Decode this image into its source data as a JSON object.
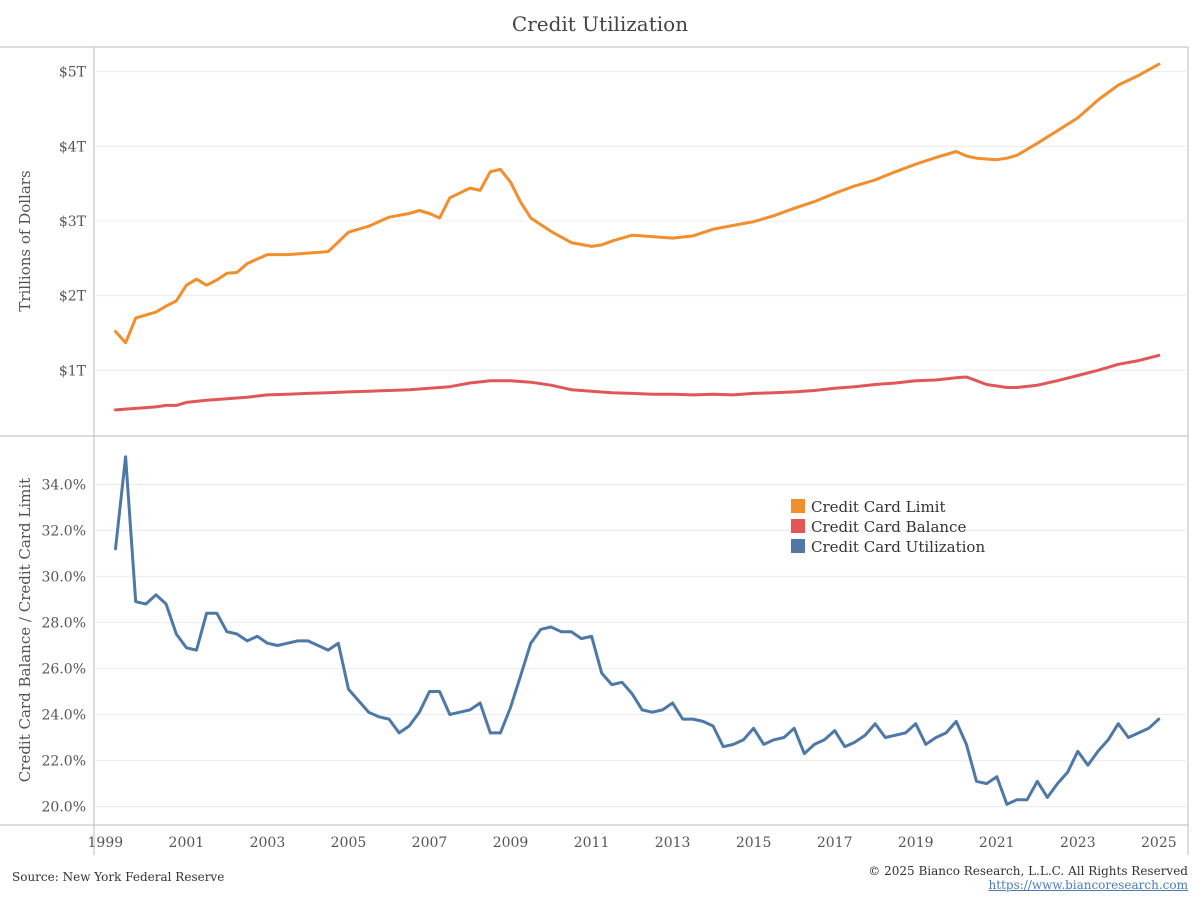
{
  "page": {
    "title": "Credit Utilization",
    "source": "Source: New York Federal Reserve",
    "copyright": "© 2025 Bianco Research, L.L.C. All Rights Reserved",
    "website": "https://www.biancoresearch.com"
  },
  "colors": {
    "limit": "#f28e2b",
    "balance": "#e15759",
    "utilization": "#4e79a7",
    "grid": "#ececec",
    "frame": "#bbbbbb"
  },
  "chart_data": [
    {
      "type": "line",
      "title": "",
      "ylabel": "Trillions of Dollars",
      "ylim": [
        0.12,
        5.33
      ],
      "yticks": [
        1,
        2,
        3,
        4,
        5
      ],
      "ytick_labels": [
        "$1T",
        "$2T",
        "$3T",
        "$4T",
        "$5T"
      ],
      "xlim": [
        1998.72,
        2025.72
      ],
      "grid": true,
      "series": [
        {
          "name": "Credit Card Limit",
          "x": [
            1999.25,
            1999.5,
            1999.75,
            2000,
            2000.25,
            2000.5,
            2000.75,
            2001,
            2001.25,
            2001.5,
            2001.75,
            2002,
            2002.25,
            2002.5,
            2003,
            2003.5,
            2004,
            2004.5,
            2005,
            2005.5,
            2006,
            2006.5,
            2006.75,
            2007,
            2007.25,
            2007.5,
            2008,
            2008.25,
            2008.5,
            2008.75,
            2009,
            2009.25,
            2009.5,
            2010,
            2010.5,
            2011,
            2011.25,
            2011.5,
            2012,
            2012.5,
            2013,
            2013.5,
            2014,
            2014.5,
            2015,
            2015.5,
            2016,
            2016.5,
            2017,
            2017.5,
            2018,
            2018.5,
            2019,
            2019.5,
            2020,
            2020.25,
            2020.5,
            2021,
            2021.25,
            2021.5,
            2022,
            2022.5,
            2023,
            2023.5,
            2024,
            2024.5,
            2025
          ],
          "values": [
            1.52,
            1.37,
            1.7,
            1.74,
            1.78,
            1.86,
            1.93,
            2.14,
            2.22,
            2.14,
            2.21,
            2.3,
            2.31,
            2.43,
            2.55,
            2.55,
            2.57,
            2.59,
            2.85,
            2.93,
            3.05,
            3.1,
            3.14,
            3.1,
            3.04,
            3.31,
            3.44,
            3.41,
            3.66,
            3.69,
            3.52,
            3.25,
            3.04,
            2.86,
            2.71,
            2.66,
            2.68,
            2.73,
            2.81,
            2.79,
            2.77,
            2.8,
            2.89,
            2.94,
            2.99,
            3.07,
            3.17,
            3.26,
            3.37,
            3.47,
            3.55,
            3.66,
            3.76,
            3.85,
            3.93,
            3.87,
            3.84,
            3.82,
            3.84,
            3.88,
            4.04,
            4.21,
            4.38,
            4.62,
            4.82,
            4.95,
            5.1
          ]
        },
        {
          "name": "Credit Card Balance",
          "x": [
            1999.25,
            1999.5,
            1999.75,
            2000,
            2000.25,
            2000.5,
            2000.75,
            2001,
            2001.5,
            2002,
            2002.5,
            2003,
            2003.5,
            2004,
            2004.5,
            2005,
            2005.5,
            2006,
            2006.5,
            2007,
            2007.5,
            2008,
            2008.5,
            2009,
            2009.5,
            2010,
            2010.5,
            2011,
            2011.5,
            2012,
            2012.5,
            2013,
            2013.5,
            2014,
            2014.5,
            2015,
            2015.5,
            2016,
            2016.5,
            2017,
            2017.5,
            2018,
            2018.5,
            2019,
            2019.5,
            2020,
            2020.25,
            2020.5,
            2020.75,
            2021,
            2021.25,
            2021.5,
            2022,
            2022.5,
            2023,
            2023.5,
            2024,
            2024.5,
            2025
          ],
          "values": [
            0.47,
            0.48,
            0.49,
            0.5,
            0.51,
            0.53,
            0.53,
            0.57,
            0.6,
            0.62,
            0.64,
            0.67,
            0.68,
            0.69,
            0.7,
            0.71,
            0.72,
            0.73,
            0.74,
            0.76,
            0.78,
            0.83,
            0.86,
            0.86,
            0.84,
            0.8,
            0.74,
            0.72,
            0.7,
            0.69,
            0.68,
            0.68,
            0.67,
            0.68,
            0.67,
            0.69,
            0.7,
            0.71,
            0.73,
            0.76,
            0.78,
            0.81,
            0.83,
            0.86,
            0.87,
            0.9,
            0.91,
            0.86,
            0.81,
            0.79,
            0.77,
            0.77,
            0.8,
            0.86,
            0.93,
            1.0,
            1.08,
            1.13,
            1.2
          ]
        }
      ]
    },
    {
      "type": "line",
      "title": "",
      "ylabel": "Credit Card Balance / Credit Card Limit",
      "ylim": [
        19.2,
        36.1
      ],
      "yticks": [
        20,
        22,
        24,
        26,
        28,
        30,
        32,
        34
      ],
      "ytick_labels": [
        "20.0%",
        "22.0%",
        "24.0%",
        "26.0%",
        "28.0%",
        "30.0%",
        "32.0%",
        "34.0%"
      ],
      "xlim": [
        1998.72,
        2025.72
      ],
      "xticks": [
        1999,
        2001,
        2003,
        2005,
        2007,
        2009,
        2011,
        2013,
        2015,
        2017,
        2019,
        2021,
        2023,
        2025
      ],
      "xtick_labels": [
        "1999",
        "2001",
        "2003",
        "2005",
        "2007",
        "2009",
        "2011",
        "2013",
        "2015",
        "2017",
        "2019",
        "2021",
        "2023",
        "2025"
      ],
      "grid": true,
      "series": [
        {
          "name": "Credit Card Utilization",
          "x": [
            1999.25,
            1999.5,
            1999.75,
            2000,
            2000.25,
            2000.5,
            2000.75,
            2001,
            2001.25,
            2001.5,
            2001.75,
            2002,
            2002.25,
            2002.5,
            2002.75,
            2003,
            2003.25,
            2003.5,
            2003.75,
            2004,
            2004.25,
            2004.5,
            2004.75,
            2005,
            2005.25,
            2005.5,
            2005.75,
            2006,
            2006.25,
            2006.5,
            2006.75,
            2007,
            2007.25,
            2007.5,
            2007.75,
            2008,
            2008.25,
            2008.5,
            2008.75,
            2009,
            2009.25,
            2009.5,
            2009.75,
            2010,
            2010.25,
            2010.5,
            2010.75,
            2011,
            2011.25,
            2011.5,
            2011.75,
            2012,
            2012.25,
            2012.5,
            2012.75,
            2013,
            2013.25,
            2013.5,
            2013.75,
            2014,
            2014.25,
            2014.5,
            2014.75,
            2015,
            2015.25,
            2015.5,
            2015.75,
            2016,
            2016.25,
            2016.5,
            2016.75,
            2017,
            2017.25,
            2017.5,
            2017.75,
            2018,
            2018.25,
            2018.5,
            2018.75,
            2019,
            2019.25,
            2019.5,
            2019.75,
            2020,
            2020.25,
            2020.5,
            2020.75,
            2021,
            2021.25,
            2021.5,
            2021.75,
            2022,
            2022.25,
            2022.5,
            2022.75,
            2023,
            2023.25,
            2023.5,
            2023.75,
            2024,
            2024.25,
            2024.5,
            2024.75,
            2025
          ],
          "values": [
            31.2,
            35.2,
            28.9,
            28.8,
            29.2,
            28.8,
            27.5,
            26.9,
            26.8,
            28.4,
            28.4,
            27.6,
            27.5,
            27.2,
            27.4,
            27.1,
            27.0,
            27.1,
            27.2,
            27.2,
            27.0,
            26.8,
            27.1,
            25.1,
            24.6,
            24.1,
            23.9,
            23.8,
            23.2,
            23.5,
            24.1,
            25.0,
            25.0,
            24.0,
            24.1,
            24.2,
            24.5,
            23.2,
            23.2,
            24.3,
            25.7,
            27.1,
            27.7,
            27.8,
            27.6,
            27.6,
            27.3,
            27.4,
            25.8,
            25.3,
            25.4,
            24.9,
            24.2,
            24.1,
            24.2,
            24.5,
            23.8,
            23.8,
            23.7,
            23.5,
            22.6,
            22.7,
            22.9,
            23.4,
            22.7,
            22.9,
            23.0,
            23.4,
            22.3,
            22.7,
            22.9,
            23.3,
            22.6,
            22.8,
            23.1,
            23.6,
            23.0,
            23.1,
            23.2,
            23.6,
            22.7,
            23.0,
            23.2,
            23.7,
            22.7,
            21.1,
            21.0,
            21.3,
            20.1,
            20.3,
            20.3,
            21.1,
            20.4,
            21.0,
            21.5,
            22.4,
            21.8,
            22.4,
            22.9,
            23.6,
            23.0,
            23.2,
            23.4,
            23.8
          ]
        }
      ]
    }
  ],
  "legend": {
    "position": "inside-bottom-panel-upper-right",
    "items": [
      {
        "label": "Credit Card Limit",
        "color": "#f28e2b"
      },
      {
        "label": "Credit Card Balance",
        "color": "#e15759"
      },
      {
        "label": "Credit Card Utilization",
        "color": "#4e79a7"
      }
    ]
  }
}
